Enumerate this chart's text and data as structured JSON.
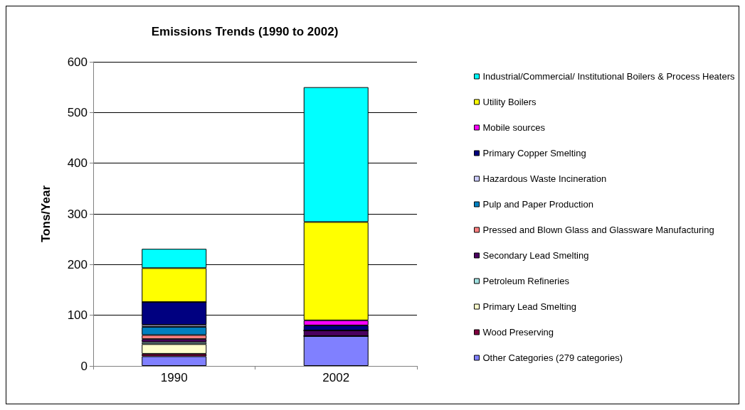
{
  "chart_data": {
    "type": "bar",
    "title": "Emissions Trends (1990 to 2002)",
    "ylabel": "Tons/Year",
    "categories": [
      "1990",
      "2002"
    ],
    "stacked": true,
    "ylim": [
      0,
      600
    ],
    "yticks": [
      0,
      100,
      200,
      300,
      400,
      500,
      600
    ],
    "grid": "y",
    "legend": "right",
    "series": [
      {
        "name": "Other Categories (279 categories)",
        "color": "#8080ff",
        "values": [
          19,
          59
        ]
      },
      {
        "name": "Wood Preserving",
        "color": "#800040",
        "values": [
          5,
          0
        ]
      },
      {
        "name": "Primary Lead Smelting",
        "color": "#ffffcc",
        "values": [
          19,
          0
        ]
      },
      {
        "name": "Petroleum Refineries",
        "color": "#a0e0e0",
        "values": [
          4,
          0
        ]
      },
      {
        "name": "Secondary Lead Smelting",
        "color": "#4b0060",
        "values": [
          6,
          11
        ]
      },
      {
        "name": "Pressed and Blown Glass and Glassware Manufacturing",
        "color": "#ff8080",
        "values": [
          8,
          0
        ]
      },
      {
        "name": "Pulp and Paper Production",
        "color": "#0080c0",
        "values": [
          16,
          0
        ]
      },
      {
        "name": "Hazardous Waste Incineration",
        "color": "#ccccff",
        "values": [
          4,
          0
        ]
      },
      {
        "name": "Primary Copper Smelting",
        "color": "#000080",
        "values": [
          45,
          10
        ]
      },
      {
        "name": "Mobile sources",
        "color": "#ff00ff",
        "values": [
          0,
          10
        ]
      },
      {
        "name": "Utility Boilers",
        "color": "#ffff00",
        "values": [
          67,
          194
        ]
      },
      {
        "name": "Industrial/Commercial/ Institutional Boilers & Process Heaters",
        "color": "#00ffff",
        "values": [
          38,
          266
        ]
      }
    ]
  }
}
